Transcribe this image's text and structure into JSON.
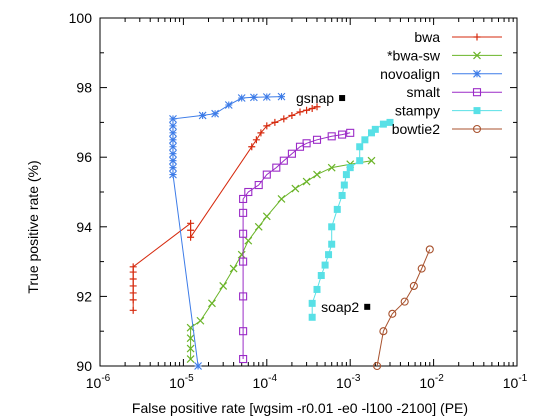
{
  "chart_data": {
    "type": "line",
    "title": "",
    "xlabel": "False positive rate [wgsim -r0.01 -e0 -l100 -2100] (PE)",
    "ylabel": "True positive rate (%)",
    "xscale": "log",
    "xlim": [
      1e-06,
      0.1
    ],
    "ylim": [
      90,
      100
    ],
    "x_ticks": [
      {
        "value": 1e-06,
        "base": "10",
        "exp": "-6"
      },
      {
        "value": 1e-05,
        "base": "10",
        "exp": "-5"
      },
      {
        "value": 0.0001,
        "base": "10",
        "exp": "-4"
      },
      {
        "value": 0.001,
        "base": "10",
        "exp": "-3"
      },
      {
        "value": 0.01,
        "base": "10",
        "exp": "-2"
      },
      {
        "value": 0.1,
        "base": "10",
        "exp": "-1"
      }
    ],
    "y_ticks": [
      90,
      92,
      94,
      96,
      98,
      100
    ],
    "grid": false,
    "legend_position": "top-right",
    "series": [
      {
        "name": "bwa",
        "color": "#d62a0e",
        "marker": "plus",
        "points": [
          [
            2.5e-06,
            91.6
          ],
          [
            2.5e-06,
            91.9
          ],
          [
            2.5e-06,
            92.1
          ],
          [
            2.5e-06,
            92.3
          ],
          [
            2.5e-06,
            92.5
          ],
          [
            2.5e-06,
            92.7
          ],
          [
            2.5e-06,
            92.85
          ],
          [
            1.22e-05,
            94.1
          ],
          [
            1.22e-05,
            93.9
          ],
          [
            1.22e-05,
            93.7
          ],
          [
            6.6e-05,
            96.3
          ],
          [
            7.5e-05,
            96.5
          ],
          [
            8.5e-05,
            96.7
          ],
          [
            0.0001,
            96.9
          ],
          [
            0.000125,
            97.0
          ],
          [
            0.00016,
            97.1
          ],
          [
            0.0002,
            97.2
          ],
          [
            0.00025,
            97.3
          ],
          [
            0.0003,
            97.35
          ],
          [
            0.00035,
            97.4
          ],
          [
            0.0004,
            97.45
          ]
        ]
      },
      {
        "name": "*bwa-sw",
        "color": "#6ab428",
        "marker": "cross",
        "points": [
          [
            1.22e-05,
            90.2
          ],
          [
            1.22e-05,
            90.5
          ],
          [
            1.22e-05,
            90.8
          ],
          [
            1.22e-05,
            91.1
          ],
          [
            1.6e-05,
            91.3
          ],
          [
            2.2e-05,
            91.8
          ],
          [
            3e-05,
            92.3
          ],
          [
            4e-05,
            92.8
          ],
          [
            5e-05,
            93.2
          ],
          [
            6e-05,
            93.6
          ],
          [
            8e-05,
            94.0
          ],
          [
            0.0001,
            94.3
          ],
          [
            0.00015,
            94.8
          ],
          [
            0.00022,
            95.1
          ],
          [
            0.0003,
            95.3
          ],
          [
            0.0004,
            95.5
          ],
          [
            0.0006,
            95.7
          ],
          [
            0.001,
            95.8
          ],
          [
            0.0018,
            95.9
          ]
        ]
      },
      {
        "name": "novoalign",
        "color": "#3d7ce8",
        "marker": "star",
        "points": [
          [
            1.5e-05,
            90
          ],
          [
            7.5e-06,
            95.5
          ],
          [
            7.5e-06,
            95.7
          ],
          [
            7.5e-06,
            95.9
          ],
          [
            7.5e-06,
            96.1
          ],
          [
            7.5e-06,
            96.3
          ],
          [
            7.5e-06,
            96.5
          ],
          [
            7.5e-06,
            96.7
          ],
          [
            7.5e-06,
            96.9
          ],
          [
            7.5e-06,
            97.1
          ],
          [
            1.7e-05,
            97.2
          ],
          [
            2.4e-05,
            97.25
          ],
          [
            3.5e-05,
            97.5
          ],
          [
            5e-05,
            97.7
          ],
          [
            7e-05,
            97.72
          ],
          [
            0.0001,
            97.73
          ],
          [
            0.00015,
            97.74
          ]
        ]
      },
      {
        "name": "smalt",
        "color": "#9b2bc7",
        "marker": "square",
        "points": [
          [
            5.2e-05,
            90.2
          ],
          [
            5.2e-05,
            91.0
          ],
          [
            5.2e-05,
            92.0
          ],
          [
            5.2e-05,
            93.0
          ],
          [
            5.2e-05,
            93.8
          ],
          [
            5.2e-05,
            94.4
          ],
          [
            5.2e-05,
            94.8
          ],
          [
            6e-05,
            95.0
          ],
          [
            8e-05,
            95.2
          ],
          [
            0.0001,
            95.5
          ],
          [
            0.00013,
            95.7
          ],
          [
            0.00016,
            95.9
          ],
          [
            0.0002,
            96.1
          ],
          [
            0.00025,
            96.3
          ],
          [
            0.0003,
            96.4
          ],
          [
            0.0004,
            96.5
          ],
          [
            0.0006,
            96.6
          ],
          [
            0.0008,
            96.65
          ],
          [
            0.001,
            96.7
          ]
        ]
      },
      {
        "name": "stampy",
        "color": "#58e0e6",
        "marker": "filled-square",
        "points": [
          [
            0.00035,
            91.4
          ],
          [
            0.00035,
            91.8
          ],
          [
            0.0004,
            92.2
          ],
          [
            0.00045,
            92.6
          ],
          [
            0.0005,
            92.9
          ],
          [
            0.00055,
            93.2
          ],
          [
            0.0006,
            93.5
          ],
          [
            0.0006,
            94.0
          ],
          [
            0.0007,
            94.5
          ],
          [
            0.0008,
            94.9
          ],
          [
            0.00085,
            95.2
          ],
          [
            0.0009,
            95.5
          ],
          [
            0.001,
            95.7
          ],
          [
            0.0013,
            95.9
          ],
          [
            0.0013,
            96.3
          ],
          [
            0.0015,
            96.5
          ],
          [
            0.0018,
            96.7
          ],
          [
            0.002,
            96.8
          ],
          [
            0.0025,
            96.95
          ],
          [
            0.003,
            97.0
          ]
        ]
      },
      {
        "name": "bowtie2",
        "color": "#a8522e",
        "marker": "circle",
        "points": [
          [
            0.0021,
            90.0
          ],
          [
            0.0025,
            91.0
          ],
          [
            0.0032,
            91.5
          ],
          [
            0.0045,
            91.85
          ],
          [
            0.0058,
            92.3
          ],
          [
            0.0072,
            92.8
          ],
          [
            0.009,
            93.35
          ]
        ]
      }
    ],
    "annotations": [
      {
        "text": "gsnap",
        "x": 0.0008,
        "y": 97.7
      },
      {
        "text": "soap2",
        "x": 0.0016,
        "y": 91.7
      }
    ]
  }
}
